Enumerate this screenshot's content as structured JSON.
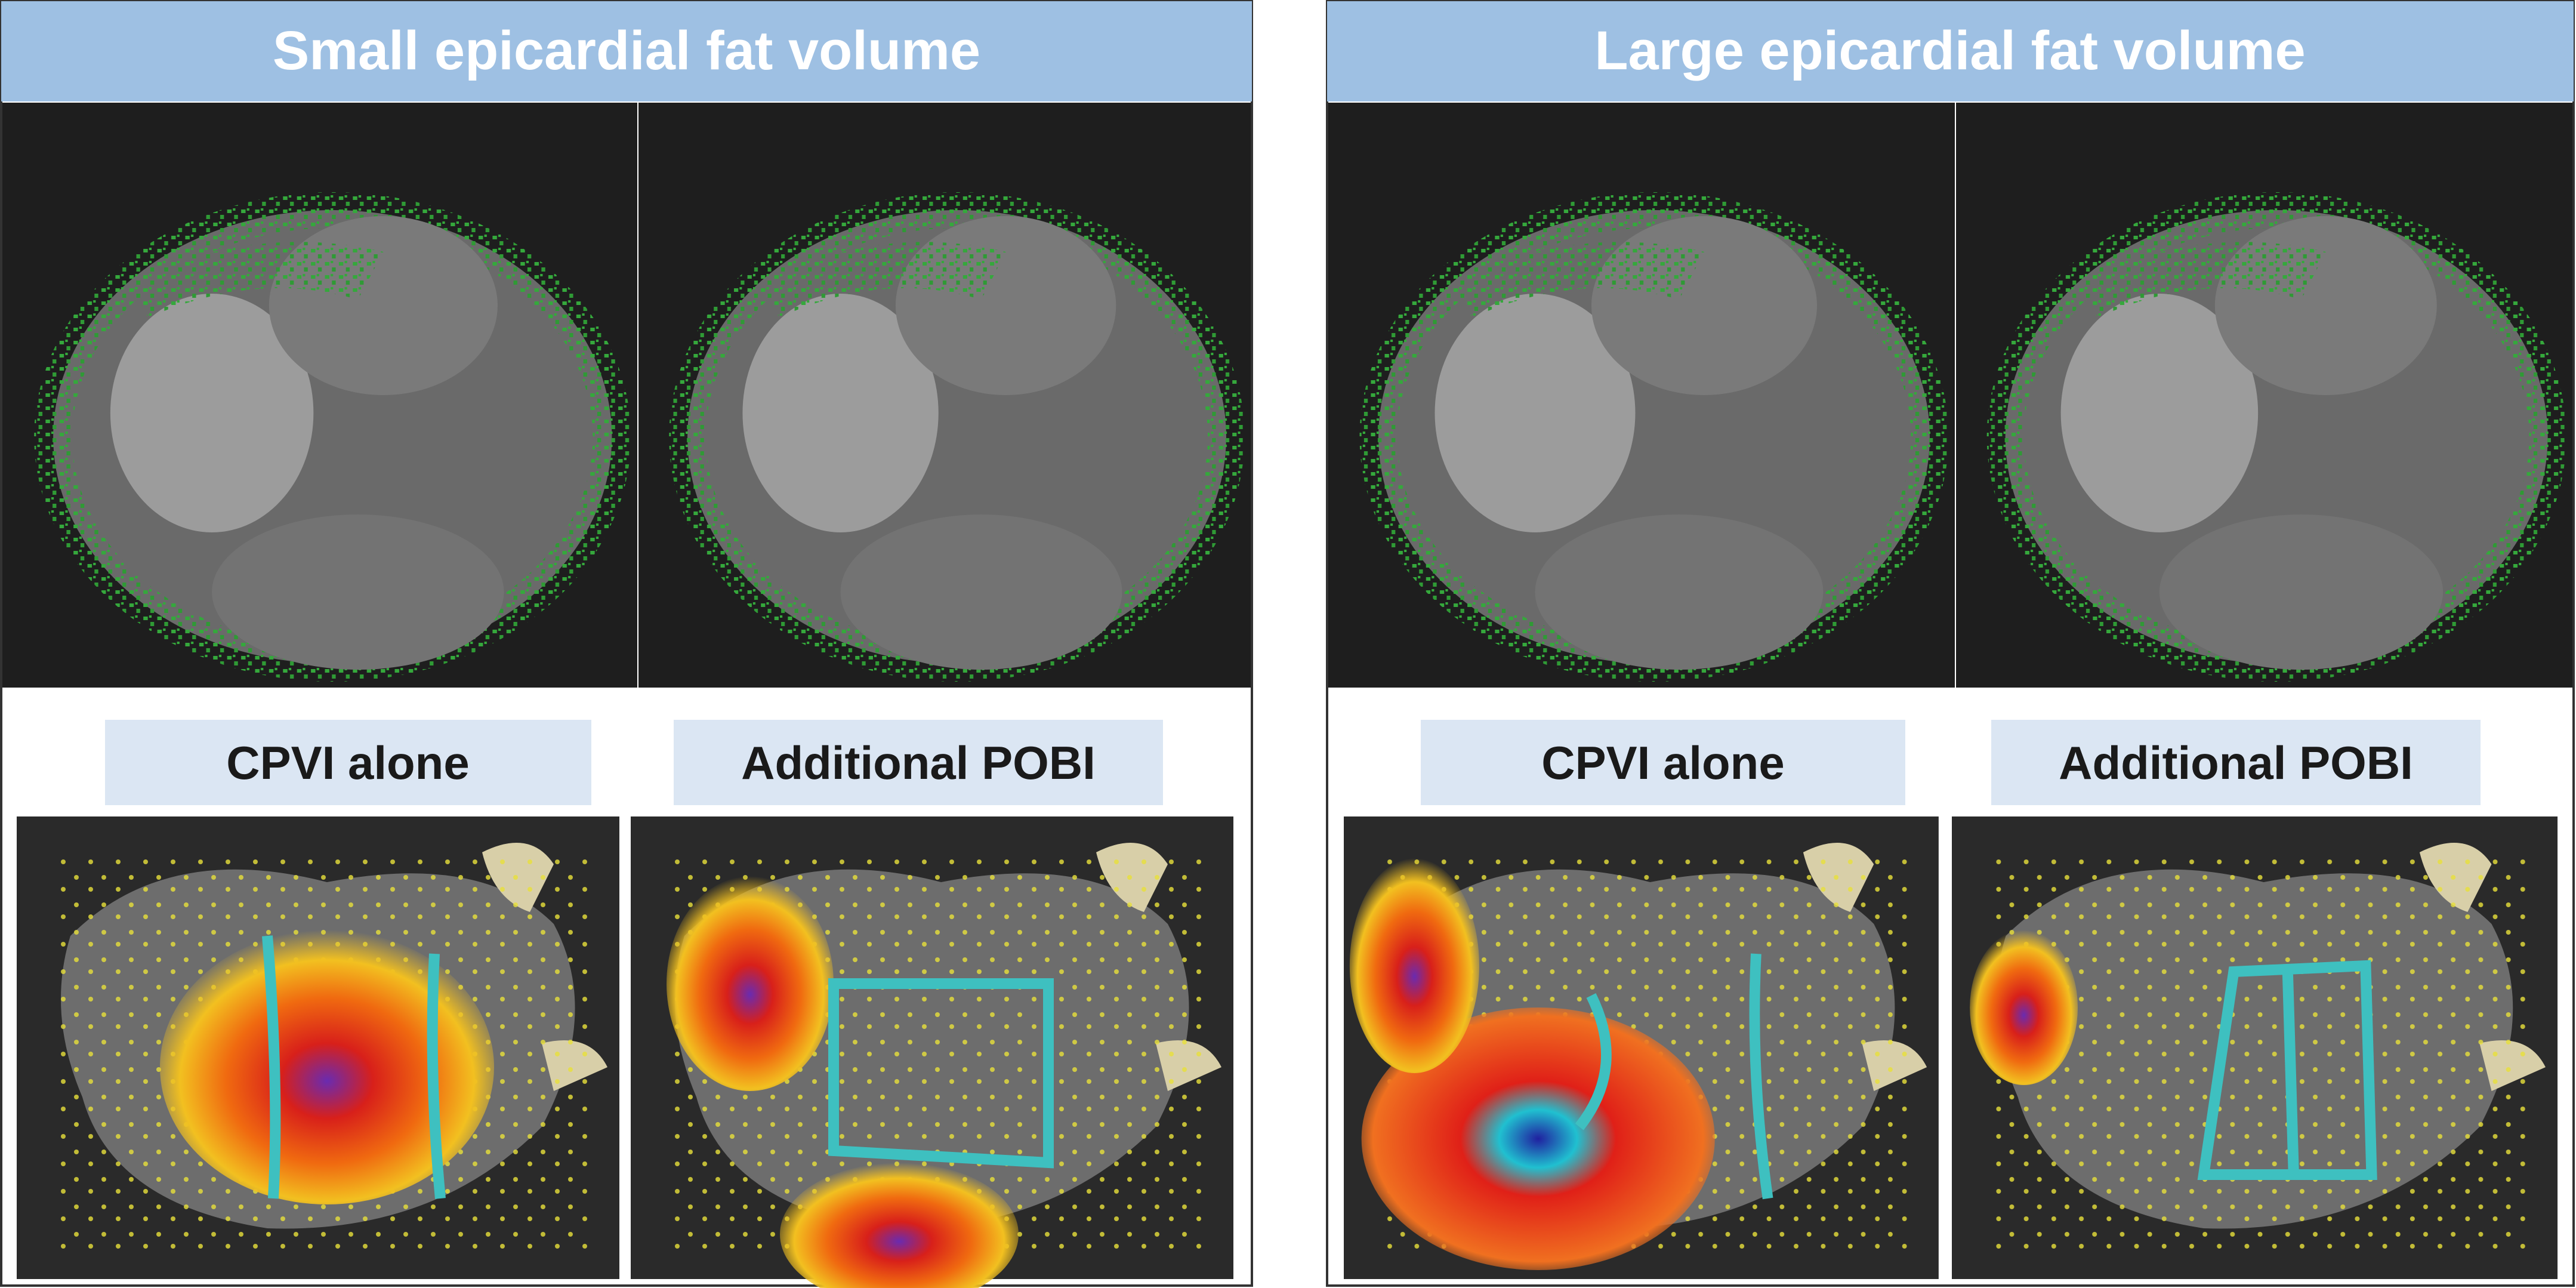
{
  "panels": [
    {
      "title": "Small epicardial fat volume",
      "labels": [
        "CPVI alone",
        "Additional POBI"
      ]
    },
    {
      "title": "Large epicardial fat volume",
      "labels": [
        "CPVI alone",
        "Additional POBI"
      ]
    }
  ]
}
